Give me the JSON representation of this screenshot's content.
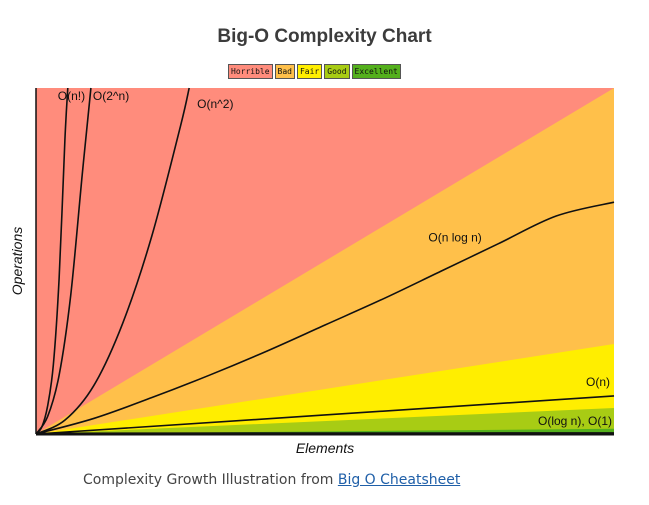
{
  "chart_data": {
    "type": "area",
    "title": "Big-O Complexity Chart",
    "xlabel": "Elements",
    "ylabel": "Operations",
    "xlim": [
      0,
      100
    ],
    "ylim": [
      0,
      100
    ],
    "legend": [
      {
        "label": "Horrible",
        "color": "#ff8c7c"
      },
      {
        "label": "Bad",
        "color": "#ffc04a"
      },
      {
        "label": "Fair",
        "color": "#ffee00"
      },
      {
        "label": "Good",
        "color": "#a8cc14"
      },
      {
        "label": "Excellent",
        "color": "#54b01c"
      }
    ],
    "bands": [
      {
        "name": "Horrible",
        "color": "#ff8c7c",
        "upper_at_max_x": 100
      },
      {
        "name": "Bad",
        "color": "#ffc04a",
        "upper_at_max_x": 100
      },
      {
        "name": "Fair",
        "color": "#ffee00",
        "upper_at_max_x": 26
      },
      {
        "name": "Good",
        "color": "#a8cc14",
        "upper_at_max_x": 7.5
      },
      {
        "name": "Excellent",
        "color": "#54b01c",
        "upper_at_max_x": 1.5
      }
    ],
    "series": [
      {
        "name": "O(n!)",
        "label": "O(n!)",
        "x": [
          0,
          1,
          2,
          3,
          4,
          5,
          5.5
        ],
        "y": [
          0,
          2,
          8,
          20,
          45,
          85,
          100
        ]
      },
      {
        "name": "O(2^n)",
        "label": "O(2^n)",
        "x": [
          0,
          2,
          4,
          6,
          8,
          9.5
        ],
        "y": [
          0,
          5,
          17,
          40,
          75,
          100
        ]
      },
      {
        "name": "O(n^2)",
        "label": "O(n^2)",
        "x": [
          0,
          5,
          10,
          15,
          20,
          25,
          26.5
        ],
        "y": [
          0,
          4,
          14,
          32,
          57,
          89,
          100
        ]
      },
      {
        "name": "O(n log n)",
        "label": "O(n log n)",
        "x": [
          0,
          10,
          20,
          30,
          40,
          50,
          60,
          70,
          80,
          90,
          100
        ],
        "y": [
          0,
          4.5,
          10.5,
          17,
          24,
          31.5,
          39,
          47,
          55,
          63,
          67
        ]
      },
      {
        "name": "O(n)",
        "label": "O(n)",
        "x": [
          0,
          100
        ],
        "y": [
          0,
          11
        ]
      },
      {
        "name": "O(log n), O(1)",
        "label": "O(log n), O(1)",
        "x": [
          0,
          1,
          5,
          20,
          50,
          100
        ],
        "y": [
          0,
          0.1,
          0.2,
          0.25,
          0.28,
          0.3
        ]
      }
    ]
  },
  "caption": {
    "text": "Complexity Growth Illustration from ",
    "link_text": "Big O Cheatsheet"
  }
}
